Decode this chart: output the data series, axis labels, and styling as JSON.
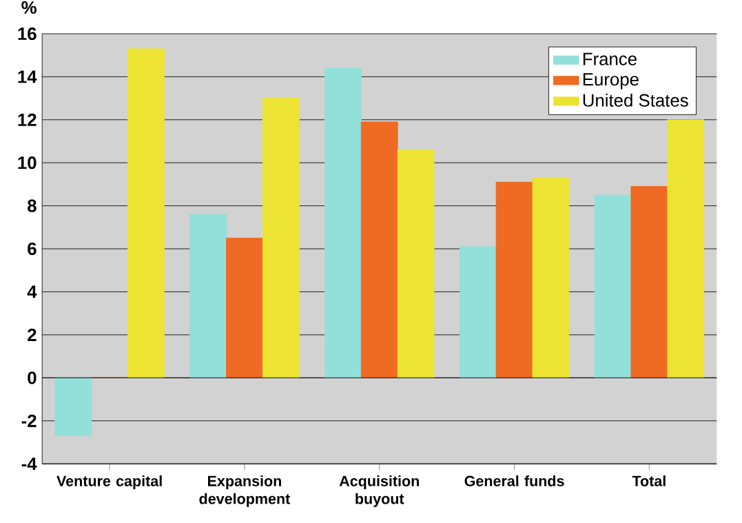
{
  "chart_data": {
    "type": "bar",
    "ylabel": "%",
    "categories": [
      "Venture capital",
      "Expansion development",
      "Acquisition buyout",
      "General funds",
      "Total"
    ],
    "series": [
      {
        "name": "France",
        "color": "#93e0da",
        "values": [
          -2.7,
          7.6,
          14.4,
          6.1,
          8.5
        ]
      },
      {
        "name": "Europe",
        "color": "#ef6a22",
        "values": [
          0,
          6.5,
          11.9,
          9.1,
          8.9
        ]
      },
      {
        "name": "United States",
        "color": "#ece332",
        "values": [
          15.3,
          13.0,
          10.6,
          9.3,
          12.0
        ]
      }
    ],
    "ylim": [
      -4,
      16
    ],
    "yticks": [
      -4,
      -2,
      0,
      2,
      4,
      6,
      8,
      10,
      12,
      14,
      16
    ],
    "grid": "y",
    "legend": "top right"
  }
}
